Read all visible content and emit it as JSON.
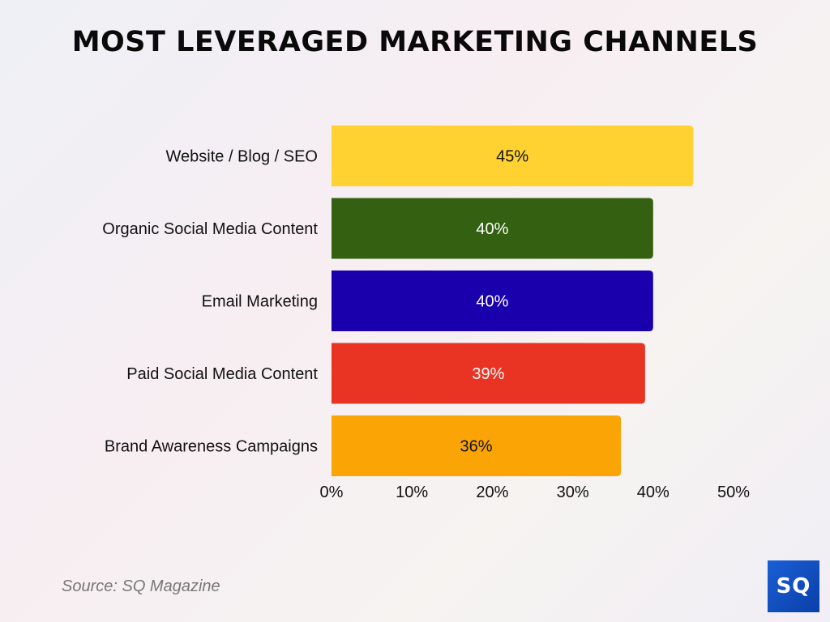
{
  "chart_data": {
    "type": "bar",
    "orientation": "horizontal",
    "title": "MOST LEVERAGED MARKETING CHANNELS",
    "categories": [
      "Website / Blog / SEO",
      "Organic Social Media Content",
      "Email Marketing",
      "Paid Social Media Content",
      "Brand Awareness Campaigns"
    ],
    "values": [
      45,
      40,
      40,
      39,
      36
    ],
    "value_labels": [
      "45%",
      "40%",
      "40%",
      "39%",
      "36%"
    ],
    "colors": [
      "#FFD232",
      "#336111",
      "#1A00AD",
      "#E93323",
      "#FBA405"
    ],
    "label_colors": [
      "#111111",
      "#ffffff",
      "#ffffff",
      "#ffffff",
      "#111111"
    ],
    "xlim": [
      0,
      50
    ],
    "xticks": [
      0,
      10,
      20,
      30,
      40,
      50
    ],
    "xtick_labels": [
      "0%",
      "10%",
      "20%",
      "30%",
      "40%",
      "50%"
    ],
    "grid": false,
    "xlabel": "",
    "ylabel": ""
  },
  "footer": {
    "source": "Source: SQ Magazine",
    "logo": "SQ"
  }
}
